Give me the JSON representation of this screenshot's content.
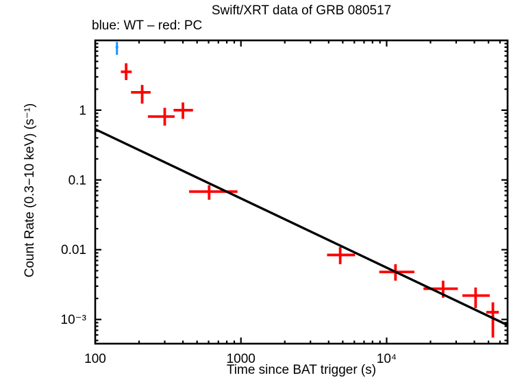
{
  "chart_data": {
    "type": "scatter",
    "title": "Swift/XRT data of GRB 080517",
    "subtitle": "blue: WT – red: PC",
    "xlabel": "Time since BAT trigger (s)",
    "ylabel": "Count Rate (0.3−10 keV) (s⁻¹)",
    "xscale": "log",
    "yscale": "log",
    "xlim": [
      100,
      67600
    ],
    "ylim": [
      0.00045,
      10
    ],
    "grid": false,
    "x_ticks": [
      {
        "value": 100,
        "label": "100"
      },
      {
        "value": 1000,
        "label": "1000"
      },
      {
        "value": 10000,
        "label": "10⁴"
      }
    ],
    "y_ticks": [
      {
        "value": 1,
        "label": "1"
      },
      {
        "value": 0.1,
        "label": "0.1"
      },
      {
        "value": 0.01,
        "label": "0.01"
      },
      {
        "value": 0.001,
        "label": "10⁻³"
      }
    ],
    "colors": {
      "wt": "#1e90ff",
      "pc": "#ff0000",
      "fit": "#000000",
      "frame": "#000000"
    },
    "series": [
      {
        "name": "WT",
        "marker": "error-cross",
        "color": "#1e90ff",
        "points": [
          {
            "t": 141,
            "t_lo": 138,
            "t_hi": 144,
            "rate": 8.0,
            "rate_lo": 6.2,
            "rate_hi": 9.5
          }
        ]
      },
      {
        "name": "PC",
        "marker": "error-cross",
        "color": "#ff0000",
        "points": [
          {
            "t": 163,
            "t_lo": 150,
            "t_hi": 178,
            "rate": 3.55,
            "rate_lo": 2.7,
            "rate_hi": 4.7
          },
          {
            "t": 210,
            "t_lo": 176,
            "t_hi": 240,
            "rate": 1.8,
            "rate_lo": 1.24,
            "rate_hi": 2.3
          },
          {
            "t": 300,
            "t_lo": 230,
            "t_hi": 351,
            "rate": 0.81,
            "rate_lo": 0.6,
            "rate_hi": 1.08
          },
          {
            "t": 400,
            "t_lo": 345,
            "t_hi": 469,
            "rate": 1.0,
            "rate_lo": 0.75,
            "rate_hi": 1.29
          },
          {
            "t": 605,
            "t_lo": 441,
            "t_hi": 947,
            "rate": 0.068,
            "rate_lo": 0.052,
            "rate_hi": 0.084
          },
          {
            "t": 4800,
            "t_lo": 3900,
            "t_hi": 6070,
            "rate": 0.0084,
            "rate_lo": 0.0062,
            "rate_hi": 0.0109
          },
          {
            "t": 11500,
            "t_lo": 8900,
            "t_hi": 15500,
            "rate": 0.0048,
            "rate_lo": 0.0036,
            "rate_hi": 0.0062
          },
          {
            "t": 24400,
            "t_lo": 17900,
            "t_hi": 30800,
            "rate": 0.00276,
            "rate_lo": 0.00205,
            "rate_hi": 0.0036
          },
          {
            "t": 40800,
            "t_lo": 33100,
            "t_hi": 51000,
            "rate": 0.0022,
            "rate_lo": 0.00146,
            "rate_hi": 0.00287
          },
          {
            "t": 53600,
            "t_lo": 48300,
            "t_hi": 58900,
            "rate": 0.00127,
            "rate_lo": 0.00055,
            "rate_hi": 0.00176
          }
        ]
      }
    ],
    "fit_line": {
      "model": "power-law decay",
      "x": [
        100,
        67600
      ],
      "y": [
        0.533,
        0.00083
      ],
      "color": "#000000"
    }
  }
}
